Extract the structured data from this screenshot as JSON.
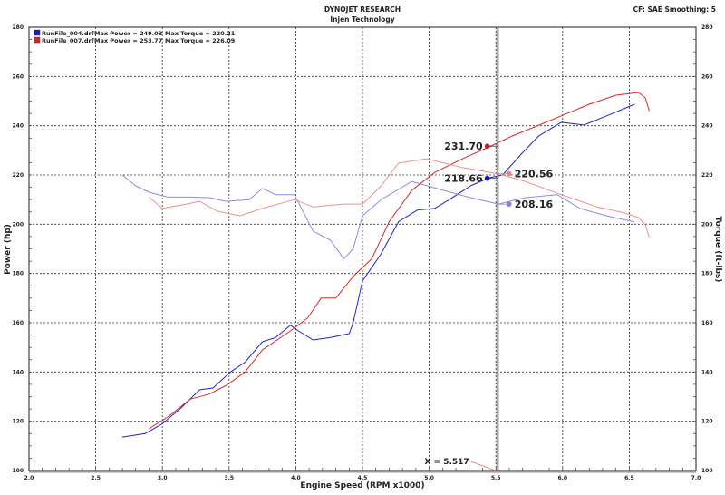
{
  "header": {
    "title": "DYNOJET RESEARCH",
    "subtitle": "Injen Technology",
    "settings": "CF: SAE  Smoothing: 5"
  },
  "legend": [
    {
      "file": "RunFile_004.drf",
      "power": "Max Power = 249.03",
      "torque": "Max Torque = 220.21",
      "color": "#1a1acc"
    },
    {
      "file": "RunFile_007.drf",
      "power": "Max Power = 253.77",
      "torque": "Max Torque = 226.09",
      "color": "#dd2222"
    }
  ],
  "cursor": {
    "label": "X = 5.517",
    "x": 5.517
  },
  "markers": [
    {
      "label": "231.70",
      "series": "power_007",
      "color": "#e01010"
    },
    {
      "label": "218.66",
      "series": "power_004",
      "color": "#1010d0"
    },
    {
      "label": "220.56",
      "series": "torque_007",
      "color": "#f08080"
    },
    {
      "label": "208.16",
      "series": "torque_004",
      "color": "#8080f0"
    }
  ],
  "chart_data": {
    "type": "line",
    "xlabel": "Engine Speed (RPM x1000)",
    "ylabel": "Power (hp)",
    "y2label": "Torque (ft-lbs)",
    "xlim": [
      2.0,
      7.0
    ],
    "ylim": [
      100,
      280
    ],
    "y2lim": [
      100,
      280
    ],
    "xticks": [
      "2.0",
      "2.5",
      "3.0",
      "3.5",
      "4.0",
      "4.5",
      "5.0",
      "5.5",
      "6.0",
      "6.5",
      "7.0"
    ],
    "yticks": [
      "100",
      "120",
      "140",
      "160",
      "180",
      "200",
      "220",
      "240",
      "260",
      "280"
    ],
    "grid": true,
    "legend_placement": "top-left",
    "series": [
      {
        "id": "power_004",
        "axis": "left",
        "color": "#2222cc",
        "x": [
          2.7,
          2.87,
          3.0,
          3.14,
          3.28,
          3.38,
          3.51,
          3.62,
          3.75,
          3.85,
          3.96,
          4.02,
          4.13,
          4.26,
          4.4,
          4.43,
          4.5,
          4.64,
          4.77,
          4.91,
          5.04,
          5.15,
          5.31,
          5.45,
          5.55,
          5.69,
          5.82,
          5.99,
          6.16,
          6.33,
          6.54
        ],
        "y": [
          113.6,
          115,
          119,
          125.4,
          132.8,
          133.5,
          140,
          144,
          152.3,
          154,
          159,
          156.7,
          153,
          154,
          155.6,
          160,
          177,
          188,
          201,
          205.7,
          206.4,
          210,
          215.6,
          218.9,
          220,
          228.5,
          235.8,
          241.4,
          240.3,
          244,
          248.7
        ]
      },
      {
        "id": "power_007",
        "axis": "left",
        "color": "#d42a2a",
        "x": [
          2.9,
          3.04,
          3.21,
          3.35,
          3.48,
          3.62,
          3.75,
          3.96,
          4.09,
          4.19,
          4.3,
          4.43,
          4.57,
          4.7,
          4.87,
          5.04,
          5.25,
          5.45,
          5.62,
          5.79,
          5.99,
          6.2,
          6.4,
          6.57,
          6.62,
          6.65
        ],
        "y": [
          117,
          121.7,
          129,
          131,
          134.6,
          140,
          149,
          156.7,
          162,
          170,
          170,
          178.8,
          186,
          201,
          213.8,
          221,
          226.6,
          231.4,
          235.8,
          239.5,
          244,
          248.7,
          252.4,
          253.5,
          251.3,
          246
        ]
      },
      {
        "id": "torque_004",
        "axis": "right",
        "color": "#8c8ce6",
        "x": [
          2.7,
          2.8,
          2.9,
          3.04,
          3.21,
          3.35,
          3.48,
          3.65,
          3.75,
          3.85,
          3.99,
          4.13,
          4.26,
          4.36,
          4.43,
          4.5,
          4.64,
          4.87,
          5.11,
          5.31,
          5.52,
          5.72,
          5.96,
          6.13,
          6.33,
          6.54
        ],
        "y": [
          220,
          215.6,
          213,
          211,
          211,
          210.8,
          209.3,
          210,
          214.5,
          212,
          212,
          197.2,
          193.5,
          186,
          190,
          203.4,
          210,
          217.4,
          213.7,
          210.8,
          208.2,
          210.8,
          212,
          206.4,
          203.4,
          200.9
        ]
      },
      {
        "id": "torque_007",
        "axis": "right",
        "color": "#ee9090",
        "x": [
          2.9,
          3.0,
          3.18,
          3.28,
          3.41,
          3.58,
          3.75,
          3.99,
          4.13,
          4.36,
          4.5,
          4.64,
          4.77,
          4.98,
          5.25,
          5.52,
          5.72,
          5.99,
          6.26,
          6.47,
          6.57,
          6.62,
          6.65
        ],
        "y": [
          211,
          206.4,
          208.2,
          209.3,
          205.3,
          203.4,
          206.4,
          210,
          207,
          208.2,
          208.2,
          215.6,
          224.8,
          226.6,
          223,
          220.4,
          217.4,
          212,
          207,
          204.5,
          202.7,
          199.8,
          194.6
        ]
      }
    ]
  }
}
